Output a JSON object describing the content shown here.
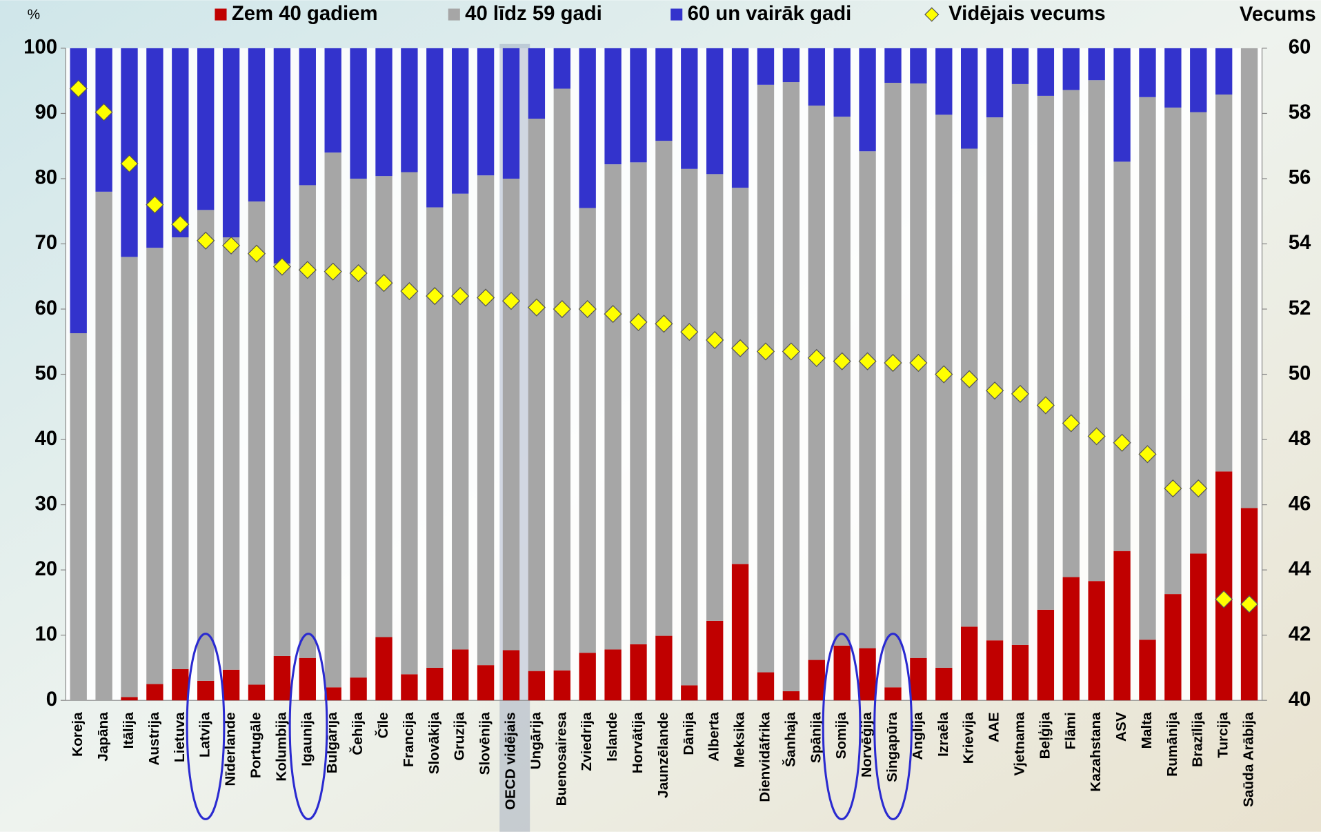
{
  "chart_data": {
    "type": "bar",
    "stacked": true,
    "y_label": "%",
    "y2_label": "Vecums",
    "categories": [
      "Koreja",
      "Japāna",
      "Itālija",
      "Austrija",
      "Lietuva",
      "Latvija",
      "Nīderlande",
      "Portugāle",
      "Kolumbija",
      "Igaunija",
      "Bulgārija",
      "Čehija",
      "Čīle",
      "Francija",
      "Slovākija",
      "Gruzija",
      "Slovēnija",
      "OECD vidējais",
      "Ungārija",
      "Buenosairesa",
      "Zviedrija",
      "Islande",
      "Horvātija",
      "Jaunzēlande",
      "Dānija",
      "Alberta",
      "Meksika",
      "Dienvidāfrika",
      "Šanhaja",
      "Spānija",
      "Somija",
      "Norvēģija",
      "Singapūra",
      "Anglija",
      "Izraēla",
      "Krievija",
      "AAE",
      "Vjetnama",
      "Beļģija",
      "Flāmi",
      "Kazahstana",
      "ASV",
      "Malta",
      "Rumānija",
      "Brazīlija",
      "Turcija",
      "Saūda Arābija"
    ],
    "series": [
      {
        "name": "Zem 40 gadiem",
        "color": "#c00000",
        "values": [
          0,
          0,
          0.5,
          2.5,
          4.8,
          3,
          4.7,
          2.4,
          6.8,
          6.5,
          2,
          3.5,
          9.7,
          4,
          5,
          7.8,
          5.4,
          7.7,
          4.5,
          4.6,
          7.3,
          7.8,
          8.6,
          9.9,
          2.3,
          12.2,
          20.9,
          4.3,
          1.4,
          6.2,
          8.4,
          8,
          2,
          6.5,
          5,
          11.3,
          9.2,
          8.5,
          13.9,
          18.9,
          18.3,
          22.9,
          9.3,
          16.3,
          22.5,
          35.1,
          29.5
        ]
      },
      {
        "name": "40 līdz 59 gadi",
        "color": "#a6a6a6",
        "values": [
          56.3,
          78,
          67.5,
          66.9,
          66.2,
          72.2,
          66.3,
          74.1,
          60.2,
          72.5,
          82,
          76.5,
          70.7,
          77,
          70.6,
          69.9,
          75.1,
          72.3,
          84.7,
          89.2,
          68.2,
          74.4,
          73.9,
          75.9,
          79.2,
          68.5,
          57.7,
          90.1,
          93.4,
          85,
          81.1,
          76.2,
          92.7,
          88.1,
          84.8,
          73.3,
          80.2,
          86,
          78.8,
          74.7,
          76.8,
          59.7,
          83.2,
          74.6,
          67.7,
          57.8,
          70.5
        ]
      },
      {
        "name": "60 un vairāk gadi",
        "color": "#3333cc",
        "values": [
          43.7,
          22,
          32,
          30.6,
          29,
          24.8,
          29,
          23.5,
          33,
          21,
          16,
          20,
          19.6,
          19,
          24.4,
          22.3,
          19.5,
          20,
          10.8,
          6.2,
          24.5,
          17.8,
          17.5,
          14.2,
          18.5,
          19.3,
          21.4,
          5.6,
          5.2,
          8.8,
          10.5,
          15.8,
          5.3,
          5.4,
          10.2,
          15.4,
          10.6,
          5.5,
          7.3,
          6.4,
          4.9,
          17.4,
          7.5,
          9.1,
          9.8,
          7.1,
          0
        ]
      },
      {
        "name": "Vidējais vecums",
        "type": "scatter",
        "marker": "diamond",
        "color": "#ffff00",
        "axis": "y2",
        "values": [
          58.76,
          58.04,
          56.46,
          55.2,
          54.6,
          54.1,
          53.95,
          53.7,
          53.3,
          53.2,
          53.15,
          53.1,
          52.8,
          52.55,
          52.4,
          52.4,
          52.35,
          52.25,
          52.05,
          52,
          52,
          51.85,
          51.6,
          51.55,
          51.3,
          51.05,
          50.8,
          50.7,
          50.7,
          50.5,
          50.4,
          50.4,
          50.35,
          50.35,
          50,
          49.85,
          49.5,
          49.4,
          49.05,
          48.5,
          48.1,
          47.9,
          47.55,
          46.5,
          46.5,
          43.1,
          42.95
        ]
      }
    ],
    "ylim": [
      0,
      100
    ],
    "yticks": [
      0,
      10,
      20,
      30,
      40,
      50,
      60,
      70,
      80,
      90,
      100
    ],
    "y2lim": [
      40,
      60
    ],
    "y2ticks": [
      40,
      42,
      44,
      46,
      48,
      50,
      52,
      54,
      56,
      58,
      60
    ],
    "grid": false
  }
}
